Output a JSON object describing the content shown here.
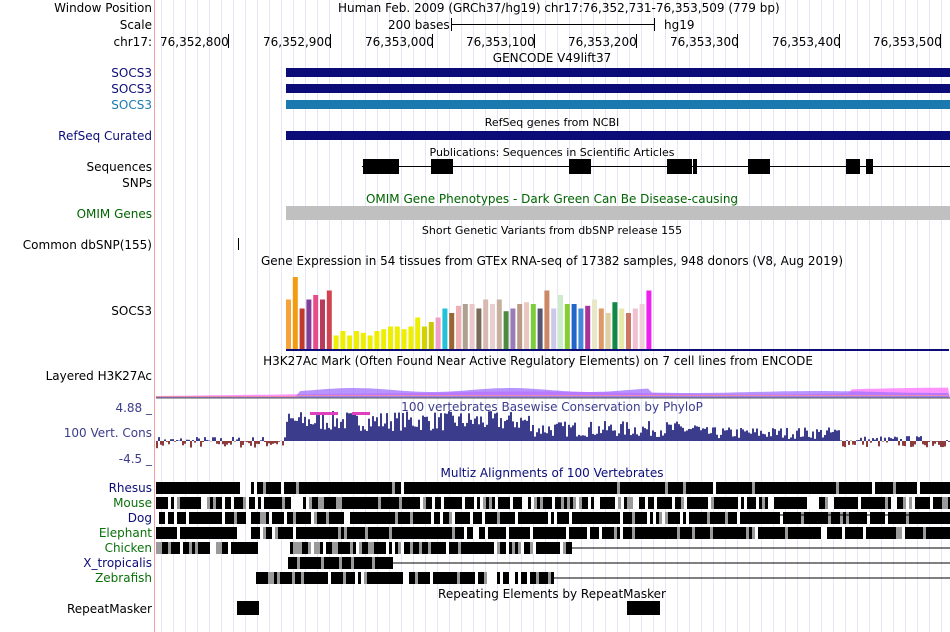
{
  "header": {
    "window_position_label": "Window Position",
    "assembly_text": "Human Feb. 2009 (GRCh37/hg19)   chr17:76,352,731-76,353,509 (779 bp)",
    "scale_label": "Scale",
    "scale_text": "200 bases",
    "db_text": "hg19",
    "chrom_label": "chr17:",
    "ticks": [
      "76,352,800",
      "76,352,900",
      "76,353,000",
      "76,353,100",
      "76,353,200",
      "76,353,300",
      "76,353,400",
      "76,353,500"
    ]
  },
  "tracks": {
    "gencode": {
      "title": "GENCODE V49lift37",
      "genes": [
        {
          "name": "SOCS3",
          "color": "#0c0c78"
        },
        {
          "name": "SOCS3",
          "color": "#0c0c78"
        },
        {
          "name": "SOCS3",
          "color": "#1a7ab0"
        }
      ]
    },
    "refseq": {
      "label": "RefSeq Curated",
      "title": "RefSeq genes from NCBI",
      "color": "#0c0c78"
    },
    "publications": {
      "title": "Publications: Sequences in Scientific Articles",
      "label_line1": "Sequences",
      "label_line2": "SNPs"
    },
    "omim": {
      "label": "OMIM Genes",
      "title": "OMIM Gene Phenotypes - Dark Green Can Be Disease-causing",
      "color": "#006400"
    },
    "dbsnp": {
      "label": "Common dbSNP(155)",
      "title": "Short Genetic Variants from dbSNP release 155"
    },
    "gtex": {
      "title": "Gene Expression in 54 tissues from GTEx RNA-seq of 17382 samples, 948 donors (V8, Aug 2019)",
      "gene_label": "SOCS3",
      "bar_values": [
        0.55,
        0.8,
        0.45,
        0.55,
        0.6,
        0.55,
        0.65,
        0.15,
        0.2,
        0.15,
        0.2,
        0.18,
        0.15,
        0.2,
        0.22,
        0.25,
        0.25,
        0.22,
        0.25,
        0.35,
        0.25,
        0.3,
        0.35,
        0.45,
        0.4,
        0.48,
        0.5,
        0.5,
        0.45,
        0.55,
        0.5,
        0.55,
        0.42,
        0.45,
        0.5,
        0.52,
        0.5,
        0.45,
        0.65,
        0.45,
        0.6,
        0.5,
        0.5,
        0.45,
        0.48,
        0.55,
        0.45,
        0.4,
        0.52,
        0.45,
        0.4,
        0.45,
        0.5,
        0.65
      ],
      "bar_colors": [
        "#f5a33a",
        "#f39c12",
        "#c0392b",
        "#7f3f98",
        "#e74c8b",
        "#b83b5e",
        "#d1444f",
        "#eeee00",
        "#eeee00",
        "#eeee00",
        "#eeee00",
        "#eeee00",
        "#eeee00",
        "#eeee00",
        "#eeee00",
        "#eeee00",
        "#eeee00",
        "#eeee00",
        "#eeee00",
        "#eeee00",
        "#d2d200",
        "#c8c800",
        "#f0a0c8",
        "#22c3d8",
        "#996633",
        "#f0b0b0",
        "#b0a090",
        "#e8c8c8",
        "#7a6a5a",
        "#d8b8b0",
        "#e8d0d0",
        "#c8b0a0",
        "#4e8b3e",
        "#9b7bb8",
        "#bb9a85",
        "#e8c8c0",
        "#7ccc3c",
        "#555570",
        "#cc8866",
        "#ccc8e8",
        "#cceccc",
        "#88cc33",
        "#2266cc",
        "#4488dd",
        "#aa3399",
        "#e8e8c8",
        "#dd9966",
        "#e0d0a0",
        "#118844",
        "#e8e8a8",
        "#cc7766",
        "#f0c0d0",
        "#f0d0d8",
        "#ee22ee"
      ]
    },
    "h3k27ac": {
      "label": "Layered H3K27Ac",
      "title": "H3K27Ac Mark (Often Found Near Active Regulatory Elements) on 7 cell lines from ENCODE"
    },
    "conservation": {
      "label": "100 Vert. Cons",
      "max_label": "4.88 _",
      "min_label": "-4.5 _",
      "title": "100 vertebrates Basewise Conservation by PhyloP",
      "color": "#3c3c8c"
    },
    "multiz": {
      "title": "Multiz Alignments of 100 Vertebrates",
      "species": [
        {
          "name": "Rhesus",
          "color": "#0c0c78"
        },
        {
          "name": "Mouse",
          "color": "#0a700a"
        },
        {
          "name": "Dog",
          "color": "#0c0c78"
        },
        {
          "name": "Elephant",
          "color": "#0a700a"
        },
        {
          "name": "Chicken",
          "color": "#0a700a"
        },
        {
          "name": "X_tropicalis",
          "color": "#0c0c78"
        },
        {
          "name": "Zebrafish",
          "color": "#0a700a"
        }
      ]
    },
    "repeatmasker": {
      "label": "RepeatMasker",
      "title": "Repeating Elements by RepeatMasker"
    }
  }
}
